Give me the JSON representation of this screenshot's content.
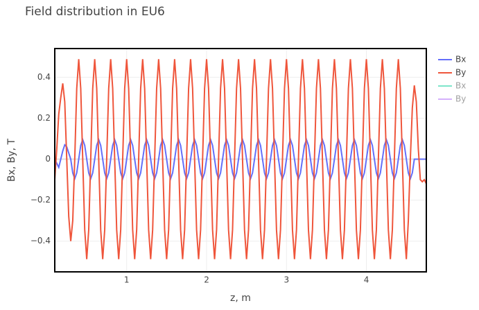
{
  "chart_data": {
    "type": "line",
    "title": "Field distribution in EU6",
    "x_label": "z, m",
    "y_label": "Bx, By, T",
    "xlim": [
      0.1,
      4.75
    ],
    "ylim": [
      -0.55,
      0.54
    ],
    "xticks": [
      1,
      2,
      3,
      4
    ],
    "yticks": [
      {
        "value": -0.4,
        "label": "−0.4"
      },
      {
        "value": -0.2,
        "label": "−0.2"
      },
      0,
      0.2,
      0.4
    ],
    "grid": true,
    "legend": "right",
    "x": [
      0.1,
      0.125,
      0.15,
      0.175,
      0.2,
      0.225,
      0.25,
      0.275,
      0.3,
      0.325,
      0.35,
      0.375,
      0.4,
      0.425,
      0.45,
      0.475,
      0.5,
      0.525,
      0.55,
      0.575,
      0.6,
      0.625,
      0.65,
      0.675,
      0.7,
      0.725,
      0.75,
      0.775,
      0.8,
      0.825,
      0.85,
      0.875,
      0.9,
      0.925,
      0.95,
      0.975,
      1.0,
      1.025,
      1.05,
      1.075,
      1.1,
      1.125,
      1.15,
      1.175,
      1.2,
      1.225,
      1.25,
      1.275,
      1.3,
      1.325,
      1.35,
      1.375,
      1.4,
      1.425,
      1.45,
      1.475,
      1.5,
      1.525,
      1.55,
      1.575,
      1.6,
      1.625,
      1.65,
      1.675,
      1.7,
      1.725,
      1.75,
      1.775,
      1.8,
      1.825,
      1.85,
      1.875,
      1.9,
      1.925,
      1.95,
      1.975,
      2.0,
      2.025,
      2.05,
      2.075,
      2.1,
      2.125,
      2.15,
      2.175,
      2.2,
      2.225,
      2.25,
      2.275,
      2.3,
      2.325,
      2.35,
      2.375,
      2.4,
      2.425,
      2.45,
      2.475,
      2.5,
      2.525,
      2.55,
      2.575,
      2.6,
      2.625,
      2.65,
      2.675,
      2.7,
      2.725,
      2.75,
      2.775,
      2.8,
      2.825,
      2.85,
      2.875,
      2.9,
      2.925,
      2.95,
      2.975,
      3.0,
      3.025,
      3.05,
      3.075,
      3.1,
      3.125,
      3.15,
      3.175,
      3.2,
      3.225,
      3.25,
      3.275,
      3.3,
      3.325,
      3.35,
      3.375,
      3.4,
      3.425,
      3.45,
      3.475,
      3.5,
      3.525,
      3.55,
      3.575,
      3.6,
      3.625,
      3.65,
      3.675,
      3.7,
      3.725,
      3.75,
      3.775,
      3.8,
      3.825,
      3.85,
      3.875,
      3.9,
      3.925,
      3.95,
      3.975,
      4.0,
      4.025,
      4.05,
      4.075,
      4.1,
      4.125,
      4.15,
      4.175,
      4.2,
      4.225,
      4.25,
      4.275,
      4.3,
      4.325,
      4.35,
      4.375,
      4.4,
      4.425,
      4.45,
      4.475,
      4.5,
      4.525,
      4.55,
      4.575,
      4.6,
      4.625,
      4.65,
      4.675,
      4.7,
      4.725,
      4.75
    ],
    "series": [
      {
        "name": "Bx",
        "color": "#636efa",
        "values": [
          0,
          -0.02,
          -0.04,
          0,
          0.04,
          0.07,
          0.06,
          0.03,
          0,
          -0.067,
          -0.095,
          -0.067,
          0,
          0.067,
          0.095,
          0.067,
          0,
          -0.067,
          -0.095,
          -0.067,
          0,
          0.067,
          0.095,
          0.067,
          0,
          -0.067,
          -0.095,
          -0.067,
          0,
          0.067,
          0.095,
          0.067,
          0,
          -0.067,
          -0.095,
          -0.067,
          0,
          0.067,
          0.095,
          0.067,
          0,
          -0.067,
          -0.095,
          -0.067,
          0,
          0.067,
          0.095,
          0.067,
          0,
          -0.067,
          -0.095,
          -0.067,
          0,
          0.067,
          0.095,
          0.067,
          0,
          -0.067,
          -0.095,
          -0.067,
          0,
          0.067,
          0.095,
          0.067,
          0,
          -0.067,
          -0.095,
          -0.067,
          0,
          0.067,
          0.095,
          0.067,
          0,
          -0.067,
          -0.095,
          -0.067,
          0,
          0.067,
          0.095,
          0.067,
          0,
          -0.067,
          -0.095,
          -0.067,
          0,
          0.067,
          0.095,
          0.067,
          0,
          -0.067,
          -0.095,
          -0.067,
          0,
          0.067,
          0.095,
          0.067,
          0,
          -0.067,
          -0.095,
          -0.067,
          0,
          0.067,
          0.095,
          0.067,
          0,
          -0.067,
          -0.095,
          -0.067,
          0,
          0.067,
          0.095,
          0.067,
          0,
          -0.067,
          -0.095,
          -0.067,
          0,
          0.067,
          0.095,
          0.067,
          0,
          -0.067,
          -0.095,
          -0.067,
          0,
          0.067,
          0.095,
          0.067,
          0,
          -0.067,
          -0.095,
          -0.067,
          0,
          0.067,
          0.095,
          0.067,
          0,
          -0.067,
          -0.095,
          -0.067,
          0,
          0.067,
          0.095,
          0.067,
          0,
          -0.067,
          -0.095,
          -0.067,
          0,
          0.067,
          0.095,
          0.067,
          0,
          -0.067,
          -0.095,
          -0.067,
          0,
          0.067,
          0.095,
          0.067,
          0,
          -0.067,
          -0.095,
          -0.067,
          0,
          0.067,
          0.095,
          0.067,
          0,
          -0.067,
          -0.095,
          -0.067,
          0,
          0.067,
          0.095,
          0.067,
          0,
          -0.067,
          -0.095,
          -0.067,
          0,
          0,
          0,
          0,
          0,
          0,
          0
        ]
      },
      {
        "name": "By",
        "color": "#ef553b",
        "values": [
          -0.1,
          0.05,
          0.22,
          0.3,
          0.37,
          0.28,
          0,
          -0.28,
          -0.4,
          -0.3,
          0,
          0.345,
          0.488,
          0.345,
          0,
          -0.345,
          -0.488,
          -0.345,
          0,
          0.345,
          0.488,
          0.345,
          0,
          -0.345,
          -0.488,
          -0.345,
          0,
          0.345,
          0.488,
          0.345,
          0,
          -0.345,
          -0.488,
          -0.345,
          0,
          0.345,
          0.488,
          0.345,
          0,
          -0.345,
          -0.488,
          -0.345,
          0,
          0.345,
          0.488,
          0.345,
          0,
          -0.345,
          -0.488,
          -0.345,
          0,
          0.345,
          0.488,
          0.345,
          0,
          -0.345,
          -0.488,
          -0.345,
          0,
          0.345,
          0.488,
          0.345,
          0,
          -0.345,
          -0.488,
          -0.345,
          0,
          0.345,
          0.488,
          0.345,
          0,
          -0.345,
          -0.488,
          -0.345,
          0,
          0.345,
          0.488,
          0.345,
          0,
          -0.345,
          -0.488,
          -0.345,
          0,
          0.345,
          0.488,
          0.345,
          0,
          -0.345,
          -0.488,
          -0.345,
          0,
          0.345,
          0.488,
          0.345,
          0,
          -0.345,
          -0.488,
          -0.345,
          0,
          0.345,
          0.488,
          0.345,
          0,
          -0.345,
          -0.488,
          -0.345,
          0,
          0.345,
          0.488,
          0.345,
          0,
          -0.345,
          -0.488,
          -0.345,
          0,
          0.345,
          0.488,
          0.345,
          0,
          -0.345,
          -0.488,
          -0.345,
          0,
          0.345,
          0.488,
          0.345,
          0,
          -0.345,
          -0.488,
          -0.345,
          0,
          0.345,
          0.488,
          0.345,
          0,
          -0.345,
          -0.488,
          -0.345,
          0,
          0.345,
          0.488,
          0.345,
          0,
          -0.345,
          -0.488,
          -0.345,
          0,
          0.345,
          0.488,
          0.345,
          0,
          -0.345,
          -0.488,
          -0.345,
          0,
          0.345,
          0.488,
          0.345,
          0,
          -0.345,
          -0.488,
          -0.345,
          0,
          0.345,
          0.488,
          0.345,
          0,
          -0.345,
          -0.488,
          -0.345,
          0,
          0.345,
          0.488,
          0.345,
          0,
          -0.345,
          -0.488,
          -0.3,
          0,
          0.25,
          0.36,
          0.28,
          0.05,
          -0.1,
          -0.11,
          -0.1,
          -0.12
        ]
      },
      {
        "name": "Bx",
        "color": "#00cc96",
        "visible": "legendonly"
      },
      {
        "name": "By",
        "color": "#ab63fa",
        "visible": "legendonly"
      }
    ]
  }
}
